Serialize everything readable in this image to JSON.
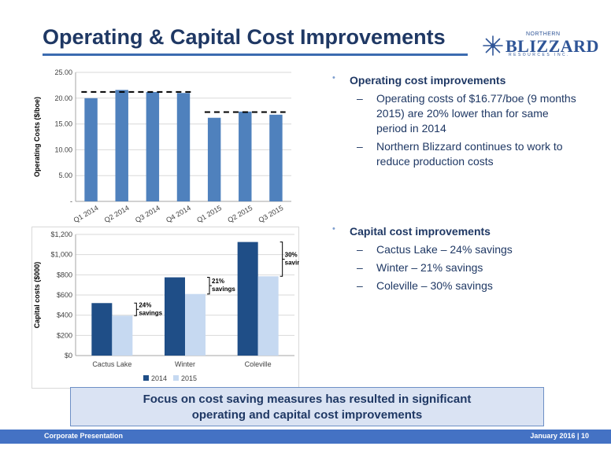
{
  "title": "Operating & Capital Cost Improvements",
  "logo": {
    "top": "NORTHERN",
    "main": "BLIZZARD",
    "sub": "RESOURCES INC."
  },
  "charts_meta": {
    "accent": "#4F81BD",
    "dark": "#1F4E87",
    "light": "#C6D9F1"
  },
  "chart_data": [
    {
      "type": "bar",
      "title": "",
      "xlabel": "",
      "ylabel": "Operating Costs ($/boe)",
      "ylim": [
        0,
        25
      ],
      "yticks": [
        "-",
        "5.00",
        "10.00",
        "15.00",
        "20.00",
        "25.00"
      ],
      "categories": [
        "Q1 2014",
        "Q2 2014",
        "Q3 2014",
        "Q4 2014",
        "Q1 2015",
        "Q2 2015",
        "Q3 2015"
      ],
      "values": [
        20.0,
        21.6,
        21.2,
        21.0,
        16.2,
        17.4,
        16.8
      ],
      "reference_lines": [
        {
          "from": "Q1 2014",
          "to": "Q4 2014",
          "value": 21.2
        },
        {
          "from": "Q1 2015",
          "to": "Q3 2015",
          "value": 17.3
        }
      ],
      "grid": true
    },
    {
      "type": "bar",
      "title": "",
      "xlabel": "",
      "ylabel": "Capital costs ($000)",
      "ylim": [
        0,
        1200
      ],
      "yticks": [
        "$0",
        "$200",
        "$400",
        "$600",
        "$800",
        "$1,000",
        "$1,200"
      ],
      "categories": [
        "Cactus Lake",
        "Winter",
        "Coleville"
      ],
      "series": [
        {
          "name": "2014",
          "values": [
            520,
            775,
            1125
          ]
        },
        {
          "name": "2015",
          "values": [
            395,
            610,
            785
          ]
        }
      ],
      "annotations": [
        {
          "category": "Cactus Lake",
          "line1": "24%",
          "line2": "savings"
        },
        {
          "category": "Winter",
          "line1": "21%",
          "line2": "savings"
        },
        {
          "category": "Coleville",
          "line1": "30%",
          "line2": "savings"
        }
      ],
      "legend": "bottom",
      "grid": true
    }
  ],
  "operating": {
    "heading": "Operating cost improvements",
    "items": [
      "Operating costs of $16.77/boe (9 months 2015) are 20% lower than for same period in 2014",
      "Northern Blizzard continues to work to reduce production costs"
    ]
  },
  "capital": {
    "heading": "Capital cost improvements",
    "items": [
      "Cactus Lake – 24% savings",
      "Winter – 21% savings",
      "Coleville – 30% savings"
    ]
  },
  "callout": {
    "line1": "Focus on cost saving measures has resulted in significant",
    "line2": "operating and capital cost improvements"
  },
  "footer": {
    "left": "Corporate Presentation",
    "right": "January 2016 | 10"
  }
}
